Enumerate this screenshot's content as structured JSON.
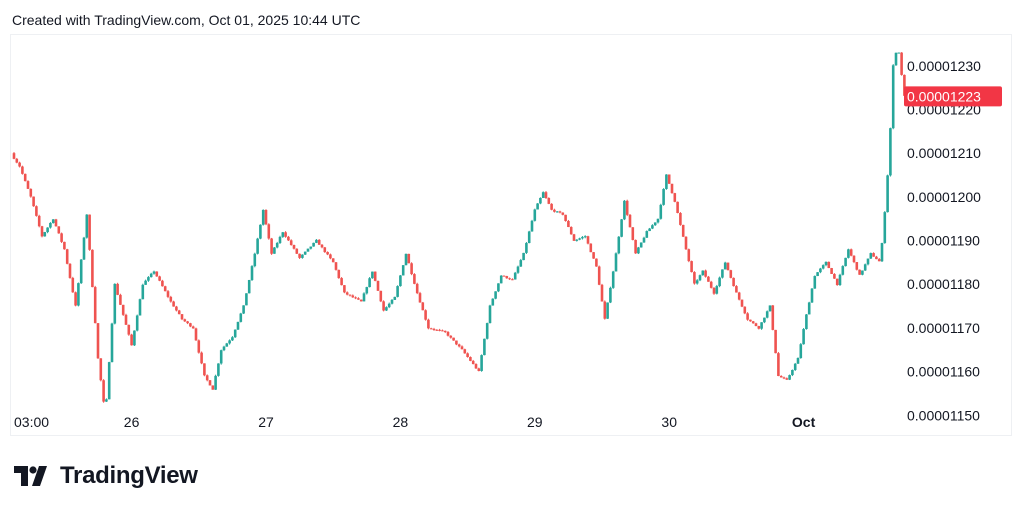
{
  "header": {
    "text": "Created with TradingView.com, Oct 01, 2025 10:44 UTC"
  },
  "brand": {
    "name": "TradingView",
    "logo_icon": "tradingview-logo-icon"
  },
  "colors": {
    "up": "#26a69a",
    "down": "#ef5350",
    "badge": "#f23645",
    "text": "#131722"
  },
  "chart_data": {
    "type": "candlestick",
    "title": "",
    "ylim": [
      1.1455e-05,
      1.23704e-05
    ],
    "yticks": [
      {
        "value": 1.23e-05,
        "label": "0.00001230"
      },
      {
        "value": 1.22e-05,
        "label": "0.00001220"
      },
      {
        "value": 1.21e-05,
        "label": "0.00001210"
      },
      {
        "value": 1.2e-05,
        "label": "0.00001200"
      },
      {
        "value": 1.19e-05,
        "label": "0.00001190"
      },
      {
        "value": 1.18e-05,
        "label": "0.00001180"
      },
      {
        "value": 1.17e-05,
        "label": "0.00001170"
      },
      {
        "value": 1.16e-05,
        "label": "0.00001160"
      },
      {
        "value": 1.15e-05,
        "label": "0.00001150"
      }
    ],
    "xticks": [
      {
        "t": 0,
        "label": "03:00"
      },
      {
        "t": 21,
        "label": "26"
      },
      {
        "t": 45,
        "label": "27"
      },
      {
        "t": 69,
        "label": "28"
      },
      {
        "t": 93,
        "label": "29"
      },
      {
        "t": 117,
        "label": "30"
      },
      {
        "t": 141,
        "label": "Oct",
        "bold": true
      }
    ],
    "last_price": {
      "value": 1.223e-05,
      "label": "0.00001223"
    },
    "anchors": [
      [
        -0.6,
        1.21e-05
      ],
      [
        1,
        1.207e-05
      ],
      [
        3,
        1.2e-05
      ],
      [
        5,
        1.191e-05
      ],
      [
        7,
        1.195e-05
      ],
      [
        9,
        1.188e-05
      ],
      [
        11,
        1.175e-05
      ],
      [
        13,
        1.196e-05
      ],
      [
        15,
        1.163e-05
      ],
      [
        16.3,
        1.15e-05
      ],
      [
        18,
        1.18e-05
      ],
      [
        21,
        1.166e-05
      ],
      [
        23,
        1.18e-05
      ],
      [
        25,
        1.183e-05
      ],
      [
        28,
        1.176e-05
      ],
      [
        30,
        1.172e-05
      ],
      [
        32,
        1.17e-05
      ],
      [
        34,
        1.159e-05
      ],
      [
        35.5,
        1.156e-05
      ],
      [
        37,
        1.165e-05
      ],
      [
        39,
        1.168e-05
      ],
      [
        41,
        1.175e-05
      ],
      [
        43,
        1.187e-05
      ],
      [
        44.5,
        1.197e-05
      ],
      [
        46,
        1.187e-05
      ],
      [
        48,
        1.192e-05
      ],
      [
        51,
        1.186e-05
      ],
      [
        54,
        1.19e-05
      ],
      [
        57,
        1.185e-05
      ],
      [
        59,
        1.178e-05
      ],
      [
        62,
        1.176e-05
      ],
      [
        64,
        1.183e-05
      ],
      [
        66,
        1.174e-05
      ],
      [
        68,
        1.177e-05
      ],
      [
        70,
        1.187e-05
      ],
      [
        72,
        1.178e-05
      ],
      [
        74,
        1.17e-05
      ],
      [
        77,
        1.169e-05
      ],
      [
        80,
        1.165e-05
      ],
      [
        83,
        1.16e-05
      ],
      [
        85,
        1.175e-05
      ],
      [
        87,
        1.182e-05
      ],
      [
        89,
        1.181e-05
      ],
      [
        91,
        1.187e-05
      ],
      [
        93,
        1.197e-05
      ],
      [
        94.5,
        1.201e-05
      ],
      [
        96,
        1.197e-05
      ],
      [
        98,
        1.196e-05
      ],
      [
        100,
        1.19e-05
      ],
      [
        102,
        1.191e-05
      ],
      [
        104,
        1.184e-05
      ],
      [
        105.5,
        1.172e-05
      ],
      [
        107,
        1.183e-05
      ],
      [
        109,
        1.199e-05
      ],
      [
        111,
        1.187e-05
      ],
      [
        113,
        1.192e-05
      ],
      [
        115,
        1.195e-05
      ],
      [
        116.5,
        1.205e-05
      ],
      [
        118,
        1.199e-05
      ],
      [
        120,
        1.188e-05
      ],
      [
        121.5,
        1.18e-05
      ],
      [
        123,
        1.183e-05
      ],
      [
        125,
        1.178e-05
      ],
      [
        127,
        1.185e-05
      ],
      [
        129,
        1.178e-05
      ],
      [
        131,
        1.172e-05
      ],
      [
        133,
        1.17e-05
      ],
      [
        135,
        1.175e-05
      ],
      [
        136.5,
        1.159e-05
      ],
      [
        138,
        1.158e-05
      ],
      [
        140,
        1.163e-05
      ],
      [
        141.5,
        1.173e-05
      ],
      [
        143,
        1.182e-05
      ],
      [
        145,
        1.185e-05
      ],
      [
        147,
        1.18e-05
      ],
      [
        149,
        1.188e-05
      ],
      [
        151,
        1.182e-05
      ],
      [
        153,
        1.187e-05
      ],
      [
        154.7,
        1.185e-05
      ],
      [
        155.4,
        1.195e-05
      ],
      [
        156.3,
        1.21e-05
      ],
      [
        157,
        1.23e-05
      ],
      [
        157.8,
        1.235e-05
      ],
      [
        158.4,
        1.229e-05
      ],
      [
        159,
        1.223e-05
      ]
    ]
  }
}
